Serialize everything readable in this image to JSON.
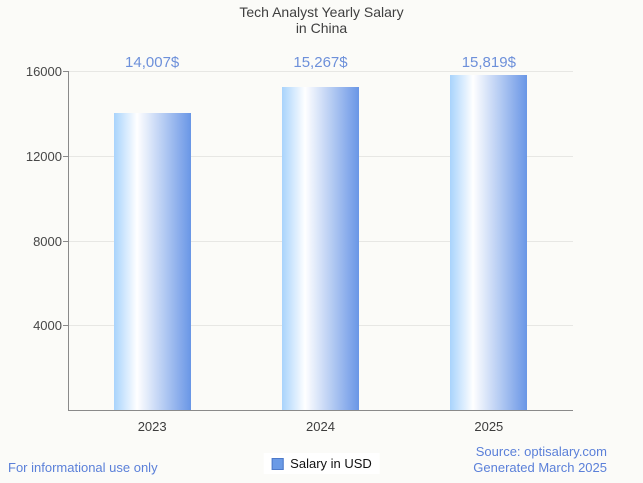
{
  "title": {
    "line1": "Tech Analyst Yearly Salary",
    "line2": "in China"
  },
  "chart_data": {
    "type": "bar",
    "title": "Tech Analyst Yearly Salary in China",
    "categories": [
      "2023",
      "2024",
      "2025"
    ],
    "series": [
      {
        "name": "Salary in USD",
        "values": [
          14007,
          15267,
          15819
        ]
      }
    ],
    "value_labels": [
      "14,007$",
      "15,267$",
      "15,819$"
    ],
    "xlabel": "",
    "ylabel": "",
    "ylim": [
      0,
      16000
    ],
    "yticks": [
      4000,
      8000,
      12000,
      16000
    ],
    "grid": true,
    "legend_position": "bottom"
  },
  "legend": {
    "label": "Salary in USD",
    "marker_color": "#6a9ae6"
  },
  "footer": {
    "left": "For informational use only",
    "source": "Source: optisalary.com",
    "generated": "Generated March 2025"
  },
  "colors": {
    "background": "#fbfbf8",
    "bar_gradient_left": "#a8d3fc",
    "bar_gradient_mid": "#ffffff",
    "bar_gradient_right": "#6996e6",
    "value_label": "#6d90da",
    "footer_text": "#5b80d9",
    "axis_line": "#8a8a8a",
    "gridline": "#e7e7e4",
    "title_text": "#3f3f3f",
    "tick_text": "#474747"
  }
}
